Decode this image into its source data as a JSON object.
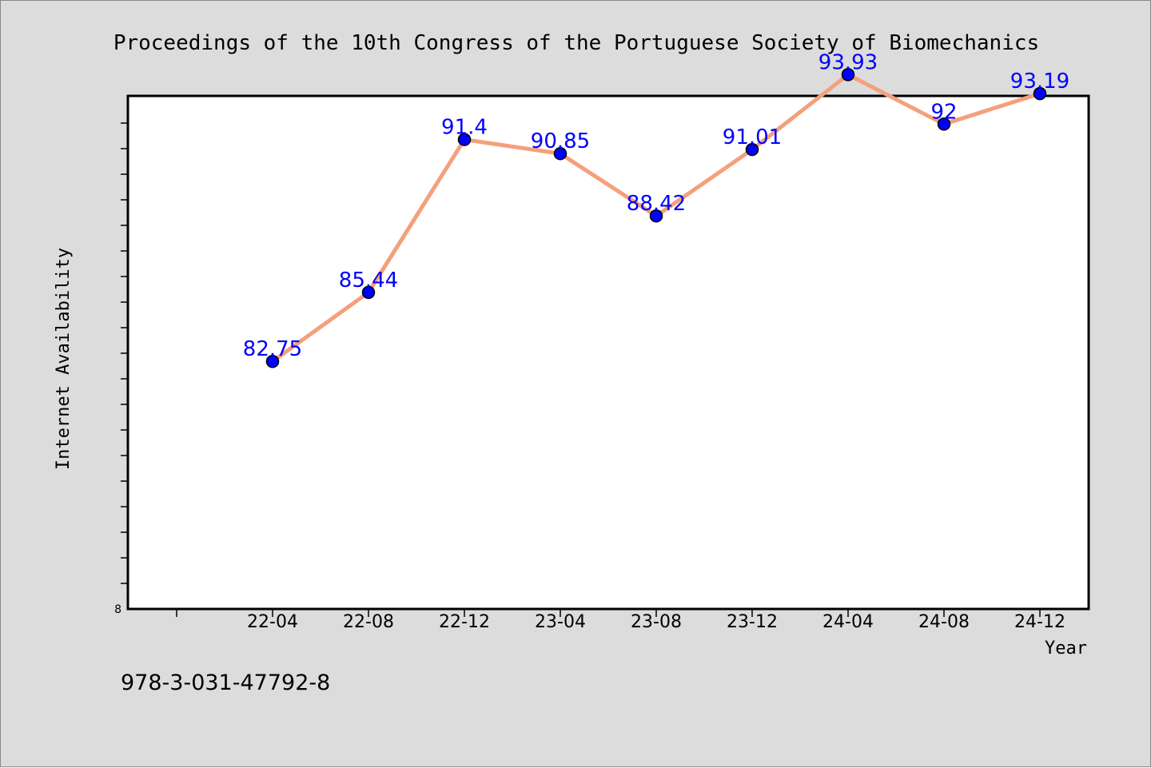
{
  "chart_data": {
    "type": "line",
    "title": "Proceedings of the 10th Congress of the Portuguese Society of Biomechanics",
    "xlabel": "Year",
    "ylabel": "Internet Availability",
    "categories": [
      "22-04",
      "22-08",
      "22-12",
      "23-04",
      "23-08",
      "23-12",
      "24-04",
      "24-08",
      "24-12"
    ],
    "series": [
      {
        "values": [
          82.75,
          85.44,
          91.4,
          90.85,
          88.42,
          91.01,
          93.93,
          92,
          93.19
        ],
        "data_labels": [
          "82.75",
          "85.44",
          "91.4",
          "90.85",
          "88.42",
          "91.01",
          "93.93",
          "92",
          "93.19"
        ],
        "line_color": "#f4a07c",
        "marker_color": "#0000ff"
      }
    ],
    "y_tick_label": "8",
    "ylim": [
      73.1,
      93.1
    ],
    "grid": false,
    "legend": "none"
  },
  "footer": {
    "isbn": "978-3-031-47792-8"
  }
}
